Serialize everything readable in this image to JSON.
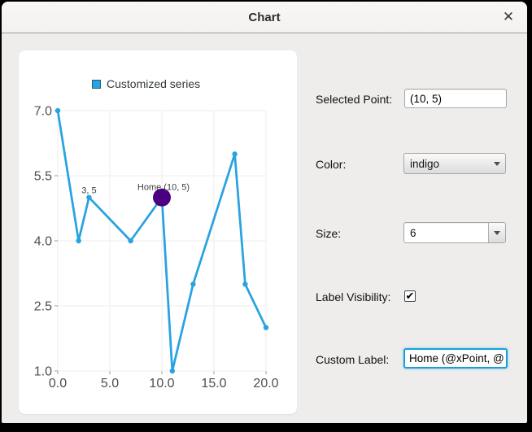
{
  "window": {
    "title": "Chart"
  },
  "icons": {
    "close": "✕",
    "check": "✔"
  },
  "chart_data": {
    "type": "line",
    "title": "",
    "legend": {
      "label": "Customized series",
      "position": "top"
    },
    "series": [
      {
        "name": "Customized series",
        "color": "#29A3E0",
        "points": [
          [
            0,
            7
          ],
          [
            2,
            4
          ],
          [
            3,
            5
          ],
          [
            7,
            4
          ],
          [
            10,
            5
          ],
          [
            11,
            1
          ],
          [
            13,
            3
          ],
          [
            17,
            6
          ],
          [
            18,
            3
          ],
          [
            20,
            2
          ]
        ]
      }
    ],
    "xlim": [
      0,
      20
    ],
    "ylim": [
      1,
      7
    ],
    "x_ticks": [
      {
        "v": 0,
        "label": "0.0"
      },
      {
        "v": 5,
        "label": "5.0"
      },
      {
        "v": 10,
        "label": "10.0"
      },
      {
        "v": 15,
        "label": "15.0"
      },
      {
        "v": 20,
        "label": "20.0"
      }
    ],
    "y_ticks": [
      {
        "v": 1,
        "label": "1.0"
      },
      {
        "v": 2.5,
        "label": "2.5"
      },
      {
        "v": 4,
        "label": "4.0"
      },
      {
        "v": 5.5,
        "label": "5.5"
      },
      {
        "v": 7,
        "label": "7.0"
      }
    ],
    "grid": true,
    "grid_color": "#ececec",
    "tick_color": "#9a9a9a",
    "selected_point": {
      "x": 10,
      "y": 5,
      "label": "Home (10, 5)",
      "color": "#4B0082",
      "radius": 11
    },
    "point_labels": [
      {
        "x": 3,
        "y": 5,
        "text": "3, 5"
      }
    ],
    "legend_swatch_border": "#1a5f85"
  },
  "controls": {
    "selected_point": {
      "label": "Selected Point:",
      "value": "(10, 5)"
    },
    "color": {
      "label": "Color:",
      "value": "indigo"
    },
    "size": {
      "label": "Size:",
      "value": "6"
    },
    "label_visibility": {
      "label": "Label Visibility:",
      "checked": true
    },
    "custom_label": {
      "label": "Custom Label:",
      "value": "Home (@xPoint, @"
    }
  }
}
